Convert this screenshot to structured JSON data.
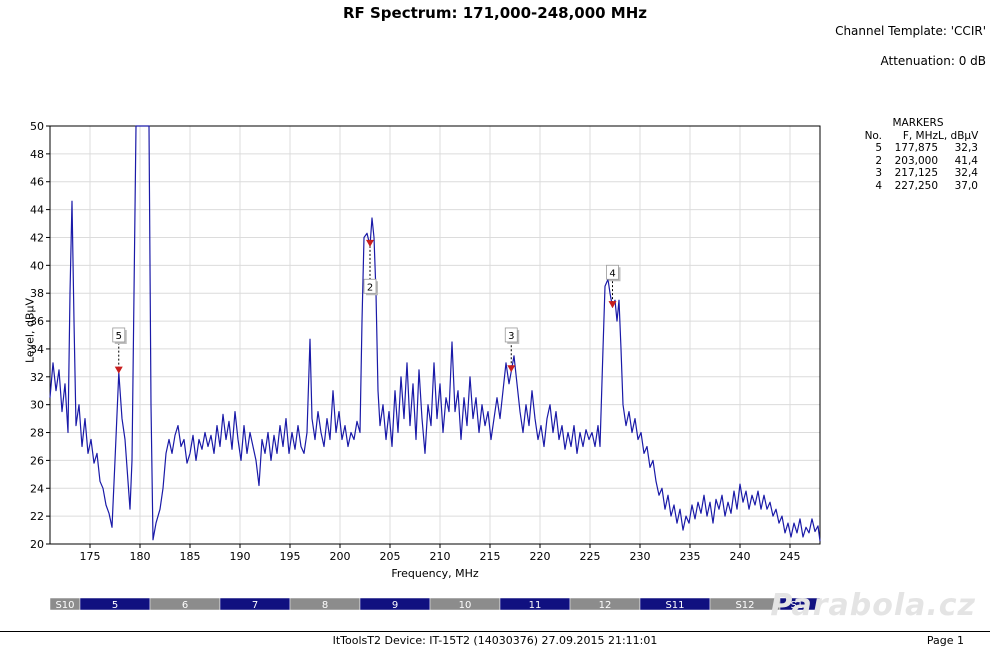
{
  "header": {
    "title": "RF Spectrum:  171,000-248,000 MHz",
    "channel_template": "Channel Template: 'CCIR'",
    "attenuation": "Attenuation: 0 dB"
  },
  "markers_table": {
    "title": "MARKERS",
    "headers": [
      "No.",
      "F, MHz",
      "L, dBµV"
    ],
    "rows": [
      [
        "5",
        "177,875",
        "32,3"
      ],
      [
        "2",
        "203,000",
        "41,4"
      ],
      [
        "3",
        "217,125",
        "32,4"
      ],
      [
        "4",
        "227,250",
        "37,0"
      ]
    ]
  },
  "chart_data": {
    "type": "line",
    "title": "RF Spectrum:  171,000-248,000 MHz",
    "xlabel": "Frequency, MHz",
    "ylabel": "Level, dBµV",
    "xlim": [
      171,
      248
    ],
    "ylim": [
      20,
      50
    ],
    "x_ticks": [
      175,
      180,
      185,
      190,
      195,
      200,
      205,
      210,
      215,
      220,
      225,
      230,
      235,
      240,
      245
    ],
    "y_ticks": [
      20,
      22,
      24,
      26,
      28,
      30,
      32,
      34,
      36,
      38,
      40,
      42,
      44,
      46,
      48,
      50
    ],
    "grid": true,
    "line_color": "#1a1aa8",
    "series": [
      {
        "values": [
          [
            171.0,
            30.5
          ],
          [
            171.3,
            33.0
          ],
          [
            171.6,
            31.0
          ],
          [
            171.9,
            32.5
          ],
          [
            172.2,
            29.5
          ],
          [
            172.5,
            31.5
          ],
          [
            172.8,
            28.0
          ],
          [
            173.0,
            38.0
          ],
          [
            173.2,
            44.6
          ],
          [
            173.4,
            36.0
          ],
          [
            173.6,
            28.5
          ],
          [
            173.9,
            30.0
          ],
          [
            174.2,
            27.0
          ],
          [
            174.5,
            29.0
          ],
          [
            174.8,
            26.5
          ],
          [
            175.1,
            27.5
          ],
          [
            175.4,
            25.8
          ],
          [
            175.7,
            26.5
          ],
          [
            176.0,
            24.5
          ],
          [
            176.3,
            24.0
          ],
          [
            176.6,
            22.8
          ],
          [
            176.9,
            22.2
          ],
          [
            177.2,
            21.2
          ],
          [
            177.5,
            26.0
          ],
          [
            177.875,
            32.3
          ],
          [
            178.2,
            29.0
          ],
          [
            178.5,
            27.5
          ],
          [
            178.8,
            24.5
          ],
          [
            179.0,
            22.5
          ],
          [
            179.2,
            26.0
          ],
          [
            179.4,
            38.0
          ],
          [
            179.6,
            50.0
          ],
          [
            180.9,
            50.0
          ],
          [
            181.1,
            30.0
          ],
          [
            181.3,
            20.3
          ],
          [
            181.6,
            21.5
          ],
          [
            182.0,
            22.5
          ],
          [
            182.3,
            24.0
          ],
          [
            182.6,
            26.5
          ],
          [
            182.9,
            27.5
          ],
          [
            183.2,
            26.5
          ],
          [
            183.5,
            27.8
          ],
          [
            183.8,
            28.5
          ],
          [
            184.1,
            27.0
          ],
          [
            184.4,
            27.5
          ],
          [
            184.7,
            25.8
          ],
          [
            185.0,
            26.5
          ],
          [
            185.3,
            27.8
          ],
          [
            185.6,
            26.0
          ],
          [
            185.9,
            27.5
          ],
          [
            186.2,
            26.8
          ],
          [
            186.5,
            28.0
          ],
          [
            186.8,
            27.0
          ],
          [
            187.1,
            27.8
          ],
          [
            187.4,
            26.5
          ],
          [
            187.7,
            28.5
          ],
          [
            188.0,
            27.0
          ],
          [
            188.3,
            29.3
          ],
          [
            188.6,
            27.5
          ],
          [
            188.9,
            28.8
          ],
          [
            189.2,
            26.8
          ],
          [
            189.5,
            29.5
          ],
          [
            189.8,
            27.5
          ],
          [
            190.1,
            26.0
          ],
          [
            190.4,
            28.5
          ],
          [
            190.7,
            26.5
          ],
          [
            191.0,
            28.0
          ],
          [
            191.3,
            27.0
          ],
          [
            191.6,
            26.0
          ],
          [
            191.9,
            24.2
          ],
          [
            192.2,
            27.5
          ],
          [
            192.5,
            26.5
          ],
          [
            192.8,
            28.0
          ],
          [
            193.1,
            26.0
          ],
          [
            193.4,
            27.8
          ],
          [
            193.7,
            26.5
          ],
          [
            194.0,
            28.5
          ],
          [
            194.3,
            27.0
          ],
          [
            194.6,
            29.0
          ],
          [
            194.9,
            26.5
          ],
          [
            195.2,
            28.0
          ],
          [
            195.5,
            26.8
          ],
          [
            195.8,
            28.5
          ],
          [
            196.1,
            27.0
          ],
          [
            196.4,
            26.5
          ],
          [
            196.7,
            28.0
          ],
          [
            197.0,
            34.7
          ],
          [
            197.2,
            29.0
          ],
          [
            197.5,
            27.5
          ],
          [
            197.8,
            29.5
          ],
          [
            198.1,
            28.0
          ],
          [
            198.4,
            27.0
          ],
          [
            198.7,
            29.0
          ],
          [
            199.0,
            27.5
          ],
          [
            199.3,
            31.0
          ],
          [
            199.6,
            28.0
          ],
          [
            199.9,
            29.5
          ],
          [
            200.2,
            27.5
          ],
          [
            200.5,
            28.5
          ],
          [
            200.8,
            27.0
          ],
          [
            201.1,
            28.0
          ],
          [
            201.4,
            27.5
          ],
          [
            201.7,
            28.8
          ],
          [
            202.0,
            28.0
          ],
          [
            202.2,
            36.0
          ],
          [
            202.4,
            42.0
          ],
          [
            202.7,
            42.3
          ],
          [
            203.0,
            41.4
          ],
          [
            203.2,
            43.4
          ],
          [
            203.4,
            42.0
          ],
          [
            203.6,
            38.0
          ],
          [
            203.8,
            31.0
          ],
          [
            204.0,
            28.5
          ],
          [
            204.3,
            30.0
          ],
          [
            204.6,
            27.5
          ],
          [
            204.9,
            29.5
          ],
          [
            205.2,
            27.0
          ],
          [
            205.5,
            31.0
          ],
          [
            205.8,
            28.0
          ],
          [
            206.1,
            32.0
          ],
          [
            206.4,
            29.0
          ],
          [
            206.7,
            33.0
          ],
          [
            207.0,
            28.5
          ],
          [
            207.3,
            31.5
          ],
          [
            207.6,
            27.5
          ],
          [
            207.9,
            32.5
          ],
          [
            208.2,
            29.0
          ],
          [
            208.5,
            26.5
          ],
          [
            208.8,
            30.0
          ],
          [
            209.1,
            28.5
          ],
          [
            209.4,
            33.0
          ],
          [
            209.7,
            29.0
          ],
          [
            210.0,
            31.5
          ],
          [
            210.3,
            28.0
          ],
          [
            210.6,
            30.5
          ],
          [
            210.9,
            29.5
          ],
          [
            211.2,
            34.5
          ],
          [
            211.5,
            29.5
          ],
          [
            211.8,
            31.0
          ],
          [
            212.1,
            27.5
          ],
          [
            212.4,
            30.5
          ],
          [
            212.7,
            28.5
          ],
          [
            213.0,
            32.0
          ],
          [
            213.3,
            29.0
          ],
          [
            213.6,
            30.5
          ],
          [
            213.9,
            28.0
          ],
          [
            214.2,
            30.0
          ],
          [
            214.5,
            28.5
          ],
          [
            214.8,
            29.5
          ],
          [
            215.1,
            27.5
          ],
          [
            215.4,
            29.0
          ],
          [
            215.7,
            30.5
          ],
          [
            216.0,
            29.0
          ],
          [
            216.3,
            31.0
          ],
          [
            216.6,
            33.0
          ],
          [
            216.9,
            31.5
          ],
          [
            217.125,
            32.4
          ],
          [
            217.4,
            33.5
          ],
          [
            217.7,
            31.5
          ],
          [
            218.0,
            29.5
          ],
          [
            218.3,
            28.0
          ],
          [
            218.6,
            30.0
          ],
          [
            218.9,
            28.5
          ],
          [
            219.2,
            31.0
          ],
          [
            219.5,
            29.0
          ],
          [
            219.8,
            27.5
          ],
          [
            220.1,
            28.5
          ],
          [
            220.4,
            27.0
          ],
          [
            220.7,
            29.0
          ],
          [
            221.0,
            30.0
          ],
          [
            221.3,
            28.0
          ],
          [
            221.6,
            29.5
          ],
          [
            221.9,
            27.5
          ],
          [
            222.2,
            28.5
          ],
          [
            222.5,
            26.8
          ],
          [
            222.8,
            28.0
          ],
          [
            223.1,
            27.0
          ],
          [
            223.4,
            28.5
          ],
          [
            223.7,
            26.5
          ],
          [
            224.0,
            28.0
          ],
          [
            224.3,
            27.0
          ],
          [
            224.6,
            28.2
          ],
          [
            224.9,
            27.5
          ],
          [
            225.2,
            28.0
          ],
          [
            225.5,
            27.0
          ],
          [
            225.8,
            28.5
          ],
          [
            226.0,
            27.0
          ],
          [
            226.3,
            34.0
          ],
          [
            226.5,
            38.5
          ],
          [
            226.8,
            39.0
          ],
          [
            227.0,
            38.0
          ],
          [
            227.25,
            37.0
          ],
          [
            227.5,
            37.5
          ],
          [
            227.7,
            36.0
          ],
          [
            227.9,
            37.5
          ],
          [
            228.1,
            34.0
          ],
          [
            228.3,
            30.0
          ],
          [
            228.6,
            28.5
          ],
          [
            228.9,
            29.5
          ],
          [
            229.2,
            28.0
          ],
          [
            229.5,
            29.0
          ],
          [
            229.8,
            27.5
          ],
          [
            230.1,
            28.0
          ],
          [
            230.4,
            26.5
          ],
          [
            230.7,
            27.0
          ],
          [
            231.0,
            25.5
          ],
          [
            231.3,
            26.0
          ],
          [
            231.6,
            24.5
          ],
          [
            231.9,
            23.5
          ],
          [
            232.2,
            24.0
          ],
          [
            232.5,
            22.5
          ],
          [
            232.8,
            23.5
          ],
          [
            233.1,
            22.0
          ],
          [
            233.4,
            22.8
          ],
          [
            233.7,
            21.5
          ],
          [
            234.0,
            22.5
          ],
          [
            234.3,
            21.0
          ],
          [
            234.6,
            22.0
          ],
          [
            234.9,
            21.5
          ],
          [
            235.2,
            22.8
          ],
          [
            235.5,
            21.8
          ],
          [
            235.8,
            23.0
          ],
          [
            236.1,
            22.2
          ],
          [
            236.4,
            23.5
          ],
          [
            236.7,
            22.0
          ],
          [
            237.0,
            23.0
          ],
          [
            237.3,
            21.5
          ],
          [
            237.6,
            23.2
          ],
          [
            237.9,
            22.5
          ],
          [
            238.2,
            23.5
          ],
          [
            238.5,
            22.0
          ],
          [
            238.8,
            23.0
          ],
          [
            239.1,
            22.2
          ],
          [
            239.4,
            23.8
          ],
          [
            239.7,
            22.5
          ],
          [
            240.0,
            24.3
          ],
          [
            240.3,
            23.0
          ],
          [
            240.6,
            23.8
          ],
          [
            240.9,
            22.5
          ],
          [
            241.2,
            23.5
          ],
          [
            241.5,
            22.8
          ],
          [
            241.8,
            23.8
          ],
          [
            242.1,
            22.5
          ],
          [
            242.4,
            23.5
          ],
          [
            242.7,
            22.5
          ],
          [
            243.0,
            23.0
          ],
          [
            243.3,
            22.0
          ],
          [
            243.6,
            22.5
          ],
          [
            243.9,
            21.5
          ],
          [
            244.2,
            22.0
          ],
          [
            244.5,
            20.8
          ],
          [
            244.8,
            21.5
          ],
          [
            245.1,
            20.5
          ],
          [
            245.4,
            21.5
          ],
          [
            245.7,
            20.8
          ],
          [
            246.0,
            21.8
          ],
          [
            246.3,
            20.5
          ],
          [
            246.6,
            21.2
          ],
          [
            246.9,
            20.8
          ],
          [
            247.2,
            21.8
          ],
          [
            247.5,
            20.9
          ],
          [
            247.8,
            21.3
          ],
          [
            248.0,
            20.2
          ]
        ]
      }
    ],
    "markers": [
      {
        "label": "5",
        "x": 177.875,
        "y": 32.3,
        "flag_y": 34.5
      },
      {
        "label": "2",
        "x": 203.0,
        "y": 41.4,
        "flag_y": 39.0
      },
      {
        "label": "3",
        "x": 217.125,
        "y": 32.4,
        "flag_y": 34.5
      },
      {
        "label": "4",
        "x": 227.25,
        "y": 37.0,
        "flag_y": 39.0
      }
    ],
    "channels": [
      {
        "label": "S10",
        "from": 171.0,
        "to": 174.0,
        "color": "#8c8c8c"
      },
      {
        "label": "5",
        "from": 174.0,
        "to": 181.0,
        "color": "#101080"
      },
      {
        "label": "6",
        "from": 181.0,
        "to": 188.0,
        "color": "#8c8c8c"
      },
      {
        "label": "7",
        "from": 188.0,
        "to": 195.0,
        "color": "#101080"
      },
      {
        "label": "8",
        "from": 195.0,
        "to": 202.0,
        "color": "#8c8c8c"
      },
      {
        "label": "9",
        "from": 202.0,
        "to": 209.0,
        "color": "#101080"
      },
      {
        "label": "10",
        "from": 209.0,
        "to": 216.0,
        "color": "#8c8c8c"
      },
      {
        "label": "11",
        "from": 216.0,
        "to": 223.0,
        "color": "#101080"
      },
      {
        "label": "12",
        "from": 223.0,
        "to": 230.0,
        "color": "#8c8c8c"
      },
      {
        "label": "S11",
        "from": 230.0,
        "to": 237.0,
        "color": "#101080"
      },
      {
        "label": "S12",
        "from": 237.0,
        "to": 244.0,
        "color": "#8c8c8c"
      },
      {
        "label": "S13",
        "from": 244.0,
        "to": 248.0,
        "color": "#101080"
      }
    ]
  },
  "footer": {
    "text": "ItToolsT2    Device: IT-15T2 (14030376)   27.09.2015 21:11:01",
    "page": "Page 1"
  },
  "watermark": "Parabola.cz"
}
